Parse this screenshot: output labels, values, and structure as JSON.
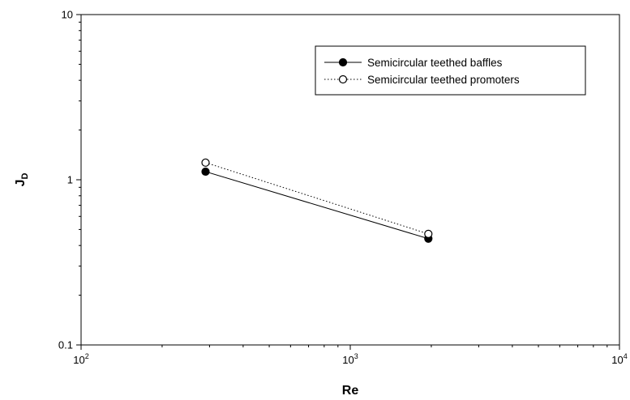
{
  "chart_data": {
    "type": "line",
    "title": "",
    "xlabel": "Re",
    "ylabel": "J",
    "ylabel_subscript": "D",
    "x_scale": "log",
    "y_scale": "log",
    "xlim": [
      100,
      10000
    ],
    "ylim": [
      0.1,
      10
    ],
    "x_ticks": [
      {
        "value": 100,
        "base": "10",
        "exp": "2"
      },
      {
        "value": 1000,
        "base": "10",
        "exp": "3"
      },
      {
        "value": 10000,
        "base": "10",
        "exp": "4"
      }
    ],
    "y_ticks": [
      {
        "value": 0.1,
        "label": "0.1"
      },
      {
        "value": 1,
        "label": "1"
      },
      {
        "value": 10,
        "label": "10"
      }
    ],
    "grid": false,
    "legend_position": "top-right",
    "series": [
      {
        "name": "Semicircular teethed baffles",
        "line_style": "solid",
        "marker": "filled-circle",
        "color": "#000000",
        "x": [
          290,
          1950
        ],
        "y": [
          1.12,
          0.44
        ]
      },
      {
        "name": "Semicircular teethed promoters",
        "line_style": "dotted",
        "marker": "open-circle",
        "color": "#000000",
        "x": [
          290,
          1950
        ],
        "y": [
          1.27,
          0.47
        ]
      }
    ]
  }
}
